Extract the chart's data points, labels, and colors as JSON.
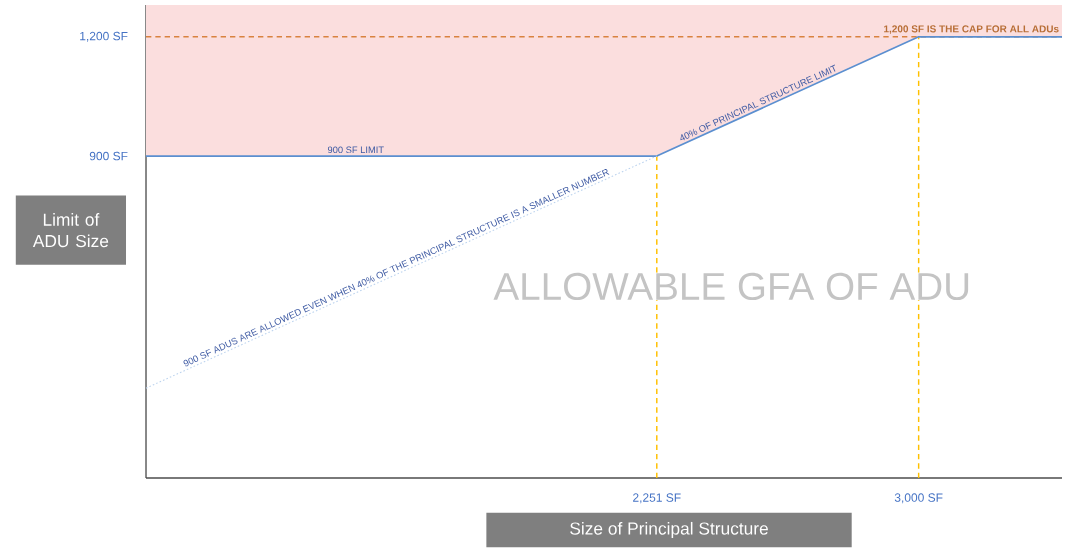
{
  "chart_data": {
    "type": "line",
    "xlabel": "Size of Principal Structure",
    "ylabel": "Limit of ADU Size",
    "xlim": [
      790,
      3410
    ],
    "ylim": [
      90,
      1280
    ],
    "xticks": [
      {
        "value": 2251,
        "label": "2,251 SF"
      },
      {
        "value": 3000,
        "label": "3,000 SF"
      }
    ],
    "yticks": [
      {
        "value": 900,
        "label": "900 SF"
      },
      {
        "value": 1200,
        "label": "1,200 SF"
      }
    ],
    "series": [
      {
        "color": "#5b8fd0",
        "x": [
          790,
          2251,
          3000,
          3410
        ],
        "values": [
          900,
          900,
          1200,
          1200
        ],
        "lower": [
          900,
          900,
          1200,
          1200
        ],
        "upper": [
          1280,
          1280,
          1280,
          1280
        ]
      },
      {
        "color": "#bcd3ee",
        "line_style": "dotted",
        "x": [
          790,
          2251
        ],
        "values": [
          316,
          900
        ]
      }
    ],
    "ref_lines": [
      {
        "axis": "y",
        "value": 1200,
        "label": "1,200 SF IS THE CAP FOR ALL ADUs",
        "color": "#d9823f",
        "line_style": "dashed"
      },
      {
        "axis": "x",
        "value": 2251,
        "color": "#ffc000",
        "line_style": "dashed"
      },
      {
        "axis": "x",
        "value": 3000,
        "color": "#ffc000",
        "line_style": "dashed"
      }
    ],
    "annotations": [
      "900 SF LIMIT",
      "40% OF PRINCIPAL STRUCTURE LIMIT",
      "900 SF ADUS ARE ALLOWED EVEN WHEN 40% OF THE PRINCIPAL STRUCTURE IS A SMALLER NUMBER",
      "ALLOWABLE GFA OF ADU"
    ],
    "grid": false,
    "marker": "none"
  }
}
